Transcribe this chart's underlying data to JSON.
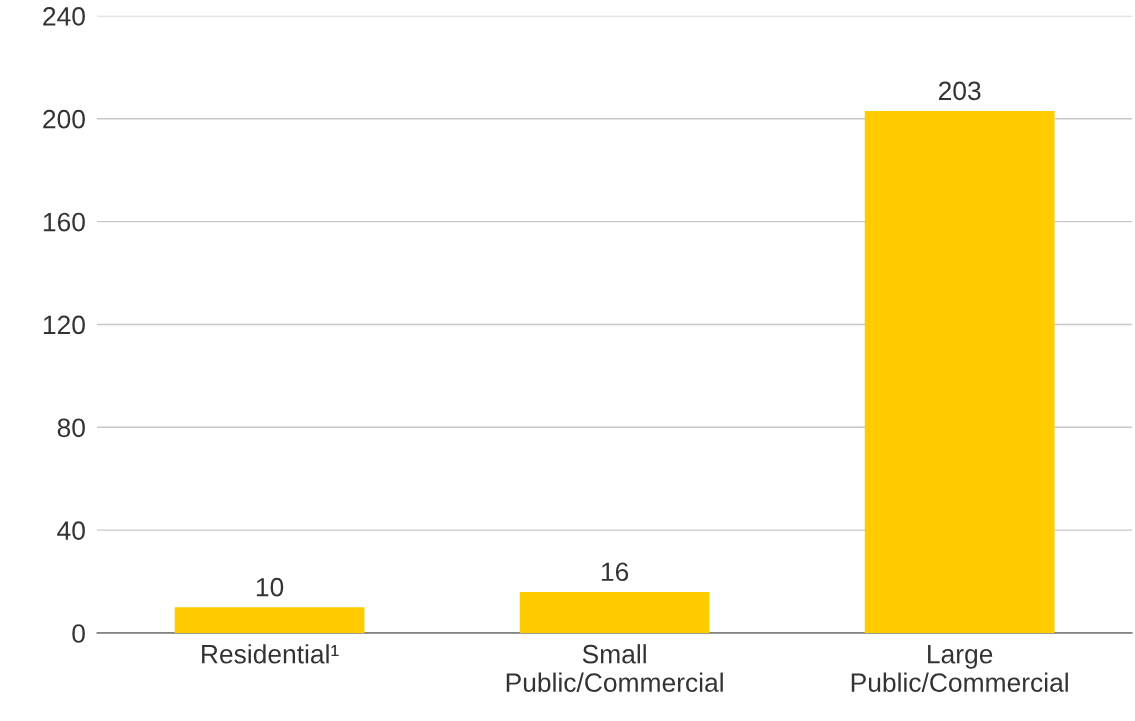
{
  "chart_data": {
    "type": "bar",
    "categories": [
      "Residential¹",
      "Small\nPublic/Commercial",
      "Large\nPublic/Commercial"
    ],
    "values": [
      10,
      16,
      203
    ],
    "color": "#ffcc00",
    "ylim": [
      0,
      240
    ],
    "yticks": [
      0,
      40,
      80,
      120,
      160,
      200,
      240
    ],
    "grid": "y",
    "data_labels": true
  }
}
